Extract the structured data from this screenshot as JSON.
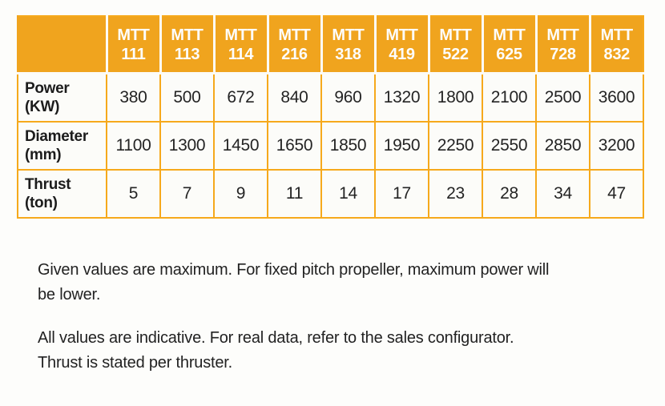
{
  "table": {
    "col_prefix": "MTT",
    "columns": [
      "111",
      "113",
      "114",
      "216",
      "318",
      "419",
      "522",
      "625",
      "728",
      "832"
    ],
    "rows": [
      {
        "label": "Power",
        "unit": "(KW)",
        "values": [
          "380",
          "500",
          "672",
          "840",
          "960",
          "1320",
          "1800",
          "2100",
          "2500",
          "3600"
        ]
      },
      {
        "label": "Diameter",
        "unit": "(mm)",
        "values": [
          "1100",
          "1300",
          "1450",
          "1650",
          "1850",
          "1950",
          "2250",
          "2550",
          "2850",
          "3200"
        ]
      },
      {
        "label": "Thrust",
        "unit": "(ton)",
        "values": [
          "5",
          "7",
          "9",
          "11",
          "14",
          "17",
          "23",
          "28",
          "34",
          "47"
        ]
      }
    ],
    "colors": {
      "header_bg": "#F0A41E",
      "border": "#F6A91C",
      "header_text": "#FDFDFD",
      "body_text": "#242424"
    }
  },
  "notes": [
    {
      "lines": [
        "Given values are maximum. For fixed pitch propeller, maximum power will",
        "be lower."
      ]
    },
    {
      "lines": [
        "All values are indicative. For real data, refer to the sales configurator.",
        "Thrust is stated per thruster."
      ]
    }
  ],
  "chart_data": {
    "type": "table",
    "columns": [
      "MTT 111",
      "MTT 113",
      "MTT 114",
      "MTT 216",
      "MTT 318",
      "MTT 419",
      "MTT 522",
      "MTT 625",
      "MTT 728",
      "MTT 832"
    ],
    "rows": [
      {
        "name": "Power (KW)",
        "values": [
          380,
          500,
          672,
          840,
          960,
          1320,
          1800,
          2100,
          2500,
          3600
        ]
      },
      {
        "name": "Diameter (mm)",
        "values": [
          1100,
          1300,
          1450,
          1650,
          1850,
          1950,
          2250,
          2550,
          2850,
          3200
        ]
      },
      {
        "name": "Thrust (ton)",
        "values": [
          5,
          7,
          9,
          11,
          14,
          17,
          23,
          28,
          34,
          47
        ]
      }
    ]
  }
}
